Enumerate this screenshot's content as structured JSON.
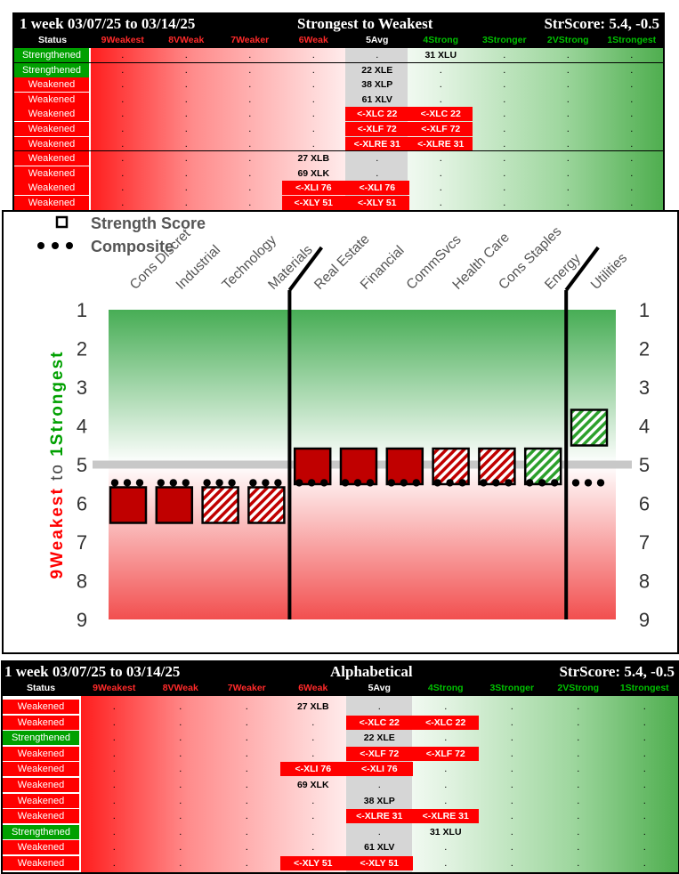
{
  "header_labels": [
    "9Weakest",
    "8VWeak",
    "7Weaker",
    "6Weak",
    "5Avg",
    "4Strong",
    "3Stronger",
    "2VStrong",
    "1Strongest"
  ],
  "header_colors": [
    "#ff2a2a",
    "#ff2a2a",
    "#ff2a2a",
    "#ff2a2a",
    "#ffffff",
    "#00c000",
    "#00c000",
    "#00c000",
    "#00c000"
  ],
  "status_header": "Status",
  "top_table": {
    "title_left": "1 week 03/07/25 to 03/14/25",
    "title_center": "Strongest to Weakest",
    "title_right": "StrScore: 5.4, -0.5",
    "rows": [
      {
        "status": "Strengthened",
        "cells": [
          {
            "col": 5,
            "text": "31 XLU",
            "red": false
          }
        ]
      },
      {
        "status": "Strengthened",
        "cells": [
          {
            "col": 4,
            "text": "22 XLE",
            "red": false
          }
        ]
      },
      {
        "status": "Weakened",
        "cells": [
          {
            "col": 4,
            "text": "38 XLP",
            "red": false
          }
        ]
      },
      {
        "status": "Weakened",
        "cells": [
          {
            "col": 4,
            "text": "61 XLV",
            "red": false
          }
        ]
      },
      {
        "status": "Weakened",
        "cells": [
          {
            "col": 4,
            "text": "<-XLC 22",
            "red": true
          },
          {
            "col": 5,
            "text": "<-XLC 22",
            "red": true
          }
        ]
      },
      {
        "status": "Weakened",
        "cells": [
          {
            "col": 4,
            "text": "<-XLF 72",
            "red": true
          },
          {
            "col": 5,
            "text": "<-XLF 72",
            "red": true
          }
        ]
      },
      {
        "status": "Weakened",
        "cells": [
          {
            "col": 4,
            "text": "<-XLRE 31",
            "red": true
          },
          {
            "col": 5,
            "text": "<-XLRE 31",
            "red": true
          }
        ]
      },
      {
        "status": "Weakened",
        "cells": [
          {
            "col": 3,
            "text": "27 XLB",
            "red": false
          }
        ]
      },
      {
        "status": "Weakened",
        "cells": [
          {
            "col": 3,
            "text": "69 XLK",
            "red": false
          }
        ]
      },
      {
        "status": "Weakened",
        "cells": [
          {
            "col": 3,
            "text": "<-XLI 76",
            "red": true
          },
          {
            "col": 4,
            "text": "<-XLI 76",
            "red": true
          }
        ]
      },
      {
        "status": "Weakened",
        "cells": [
          {
            "col": 3,
            "text": "<-XLY 51",
            "red": true
          },
          {
            "col": 4,
            "text": "<-XLY 51",
            "red": true
          }
        ]
      }
    ]
  },
  "bottom_table": {
    "title_left": "1 week 03/07/25 to 03/14/25",
    "title_center": "Alphabetical",
    "title_right": "StrScore: 5.4, -0.5",
    "rows": [
      {
        "status": "Weakened",
        "cells": [
          {
            "col": 3,
            "text": "27 XLB",
            "red": false
          }
        ]
      },
      {
        "status": "Weakened",
        "cells": [
          {
            "col": 4,
            "text": "<-XLC 22",
            "red": true
          },
          {
            "col": 5,
            "text": "<-XLC 22",
            "red": true
          }
        ]
      },
      {
        "status": "Strengthened",
        "cells": [
          {
            "col": 4,
            "text": "22 XLE",
            "red": false
          }
        ]
      },
      {
        "status": "Weakened",
        "cells": [
          {
            "col": 4,
            "text": "<-XLF 72",
            "red": true
          },
          {
            "col": 5,
            "text": "<-XLF 72",
            "red": true
          }
        ]
      },
      {
        "status": "Weakened",
        "cells": [
          {
            "col": 3,
            "text": "<-XLI 76",
            "red": true
          },
          {
            "col": 4,
            "text": "<-XLI 76",
            "red": true
          }
        ]
      },
      {
        "status": "Weakened",
        "cells": [
          {
            "col": 3,
            "text": "69 XLK",
            "red": false
          }
        ]
      },
      {
        "status": "Weakened",
        "cells": [
          {
            "col": 4,
            "text": "38 XLP",
            "red": false
          }
        ]
      },
      {
        "status": "Weakened",
        "cells": [
          {
            "col": 4,
            "text": "<-XLRE 31",
            "red": true
          },
          {
            "col": 5,
            "text": "<-XLRE 31",
            "red": true
          }
        ]
      },
      {
        "status": "Strengthened",
        "cells": [
          {
            "col": 5,
            "text": "31 XLU",
            "red": false
          }
        ]
      },
      {
        "status": "Weakened",
        "cells": [
          {
            "col": 4,
            "text": "61 XLV",
            "red": false
          }
        ]
      },
      {
        "status": "Weakened",
        "cells": [
          {
            "col": 3,
            "text": "<-XLY 51",
            "red": true
          },
          {
            "col": 4,
            "text": "<-XLY 51",
            "red": true
          }
        ]
      }
    ]
  },
  "chart_data": {
    "type": "bar",
    "legend": [
      "Strength Score",
      "Composite"
    ],
    "legend_position": "top-left",
    "categories": [
      "Cons Discret",
      "Industrial",
      "Technology",
      "Materials",
      "Real Estate",
      "Financial",
      "CommSvcs",
      "Health Care",
      "Cons Staples",
      "Energy",
      "Utilities"
    ],
    "series": [
      {
        "name": "Strength Score",
        "values": [
          6,
          6,
          6,
          6,
          5,
          5,
          5,
          5,
          5,
          5,
          4
        ],
        "style": [
          "solid-red",
          "solid-red",
          "hatched-red",
          "hatched-red",
          "solid-red",
          "solid-red",
          "solid-red",
          "hatched-red",
          "hatched-red",
          "hatched-green",
          "hatched-green"
        ]
      },
      {
        "name": "Composite",
        "values": [
          5.4,
          5.4,
          5.4,
          5.4,
          5.4,
          5.4,
          5.4,
          5.4,
          5.4,
          5.4,
          5.4
        ]
      }
    ],
    "reference_line": 5,
    "ylim": [
      1,
      9
    ],
    "y_ticks": [
      "1",
      "2",
      "3",
      "4",
      "5",
      "6",
      "7",
      "8",
      "9"
    ],
    "y_label_weak_num": "9",
    "y_label_weak": "Weakest",
    "y_label_to": "to",
    "y_label_strong_num": "1",
    "y_label_strong": "Strongest",
    "dividers_after": [
      "Materials",
      "Energy"
    ],
    "colors": {
      "red": "#c00000",
      "green": "#2ca02c",
      "grey": "#c8c8c8"
    }
  }
}
